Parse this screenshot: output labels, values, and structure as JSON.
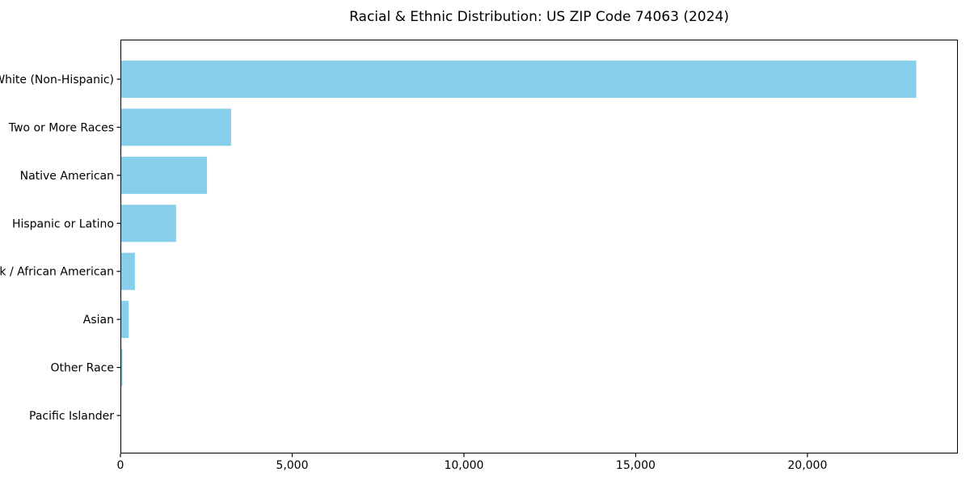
{
  "chart_data": {
    "type": "bar",
    "orientation": "horizontal",
    "title": "Racial & Ethnic Distribution: US ZIP Code 74063 (2024)",
    "categories": [
      "White (Non-Hispanic)",
      "Two or More Races",
      "Native American",
      "Hispanic or Latino",
      "Black / African American",
      "Asian",
      "Other Race",
      "Pacific Islander"
    ],
    "values": [
      23170,
      3220,
      2520,
      1620,
      420,
      240,
      60,
      0
    ],
    "xlabel": "",
    "ylabel": "",
    "xlim": [
      0,
      24380
    ],
    "xticks": [
      0,
      5000,
      10000,
      15000,
      20000
    ],
    "xtick_labels": [
      "0",
      "5,000",
      "10,000",
      "15,000",
      "20,000"
    ],
    "bar_color": "#87CEEB",
    "axis_color": "#000000",
    "text_color": "#000000",
    "background": "#FFFFFF",
    "grid": false,
    "legend": null
  }
}
